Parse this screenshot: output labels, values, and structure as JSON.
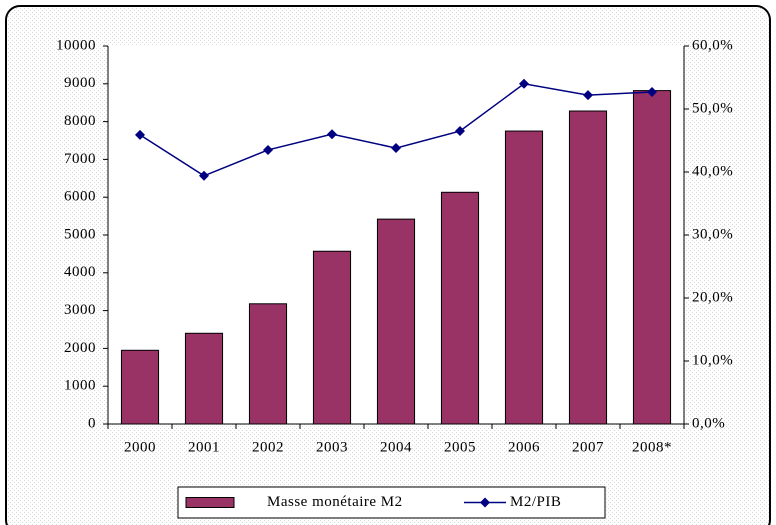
{
  "chart_data": {
    "type": "bar",
    "categories": [
      "2000",
      "2001",
      "2002",
      "2003",
      "2004",
      "2005",
      "2006",
      "2007",
      "2008*"
    ],
    "series": [
      {
        "name": "Masse monétaire M2",
        "color": "#993366",
        "values": [
          1950,
          2400,
          3180,
          4570,
          5420,
          6130,
          7750,
          8280,
          8820
        ]
      },
      {
        "name": "M2/PIB",
        "color": "#000080",
        "type": "line",
        "axis": "y2",
        "values": [
          45.9,
          39.4,
          43.5,
          46.0,
          43.8,
          46.5,
          54.0,
          52.2,
          52.7
        ]
      }
    ],
    "ylim": [
      0,
      10000
    ],
    "yticks": [
      0,
      1000,
      2000,
      3000,
      4000,
      5000,
      6000,
      7000,
      8000,
      9000,
      10000
    ],
    "y2lim": [
      0,
      60
    ],
    "y2ticks": [
      {
        "value": 0,
        "label": "0,0%"
      },
      {
        "value": 10,
        "label": "10,0%"
      },
      {
        "value": 20,
        "label": "20,0%"
      },
      {
        "value": 30,
        "label": "30,0%"
      },
      {
        "value": 40,
        "label": "40,0%"
      },
      {
        "value": 50,
        "label": "50,0%"
      },
      {
        "value": 60,
        "label": "60,0%"
      }
    ],
    "grid": false,
    "legend": "bottom"
  }
}
